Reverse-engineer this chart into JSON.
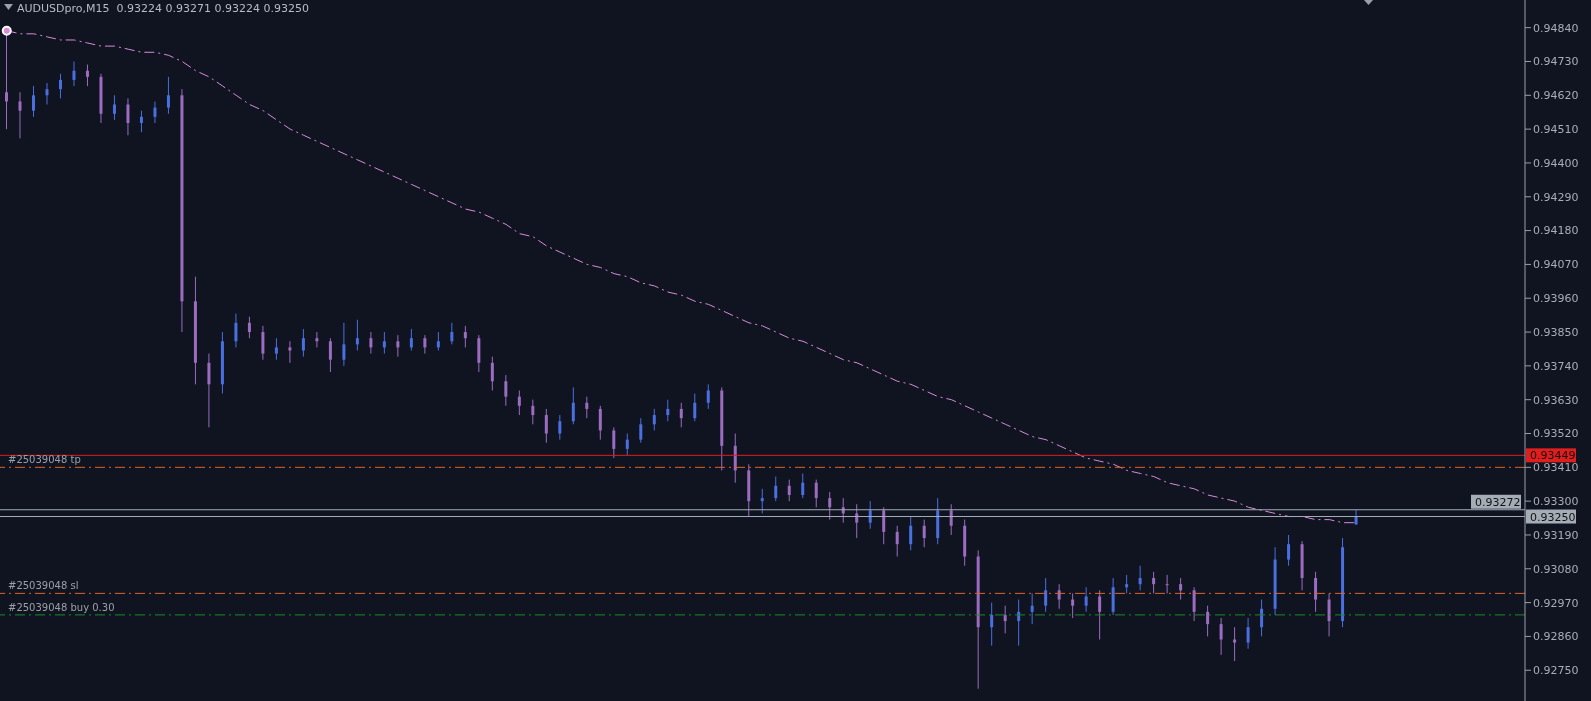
{
  "chart_data": {
    "type": "candlestick",
    "title": "AUDUSDpro,M15  0.93224 0.93271 0.93224 0.93250",
    "categories": [
      null,
      null,
      null,
      null,
      null,
      null,
      null,
      null,
      null,
      null,
      null,
      null,
      null,
      null,
      null,
      null,
      null,
      null,
      null,
      null,
      null,
      null,
      null,
      null,
      null,
      null,
      null,
      null,
      null,
      null,
      null,
      null,
      null,
      null,
      null,
      null,
      null,
      null,
      null,
      null,
      null,
      null,
      null,
      null,
      null,
      null,
      null,
      null,
      null,
      null,
      null,
      null,
      null,
      null,
      null,
      null,
      null,
      null,
      null,
      null,
      null,
      null,
      null,
      null,
      null,
      null,
      null,
      null,
      null,
      null,
      null,
      null,
      null,
      null,
      null,
      null,
      null,
      null,
      null,
      null,
      null,
      null,
      null,
      null,
      null,
      null,
      null,
      null,
      null,
      null,
      null,
      null,
      null,
      null,
      null,
      null,
      null,
      null,
      null,
      null,
      null,
      null,
      null,
      null,
      null,
      null,
      null,
      null,
      null,
      null,
      null,
      null,
      null
    ],
    "ohlc": [
      [
        0.9463,
        0.9482,
        0.9451,
        0.946
      ],
      [
        0.946,
        0.9463,
        0.9448,
        0.9457
      ],
      [
        0.9457,
        0.9465,
        0.9455,
        0.9462
      ],
      [
        0.9462,
        0.9466,
        0.9459,
        0.9464
      ],
      [
        0.9464,
        0.9469,
        0.9461,
        0.9467
      ],
      [
        0.9467,
        0.9473,
        0.9465,
        0.947
      ],
      [
        0.947,
        0.9472,
        0.9465,
        0.9468
      ],
      [
        0.9468,
        0.9469,
        0.9453,
        0.9456
      ],
      [
        0.9456,
        0.9462,
        0.9454,
        0.9459
      ],
      [
        0.9459,
        0.9461,
        0.9449,
        0.9453
      ],
      [
        0.9453,
        0.9457,
        0.945,
        0.9455
      ],
      [
        0.9455,
        0.946,
        0.9453,
        0.9458
      ],
      [
        0.9458,
        0.9468,
        0.9456,
        0.9462
      ],
      [
        0.9462,
        0.9464,
        0.9385,
        0.9395
      ],
      [
        0.9395,
        0.9403,
        0.9368,
        0.9375
      ],
      [
        0.9375,
        0.9378,
        0.9354,
        0.9368
      ],
      [
        0.9368,
        0.9385,
        0.9365,
        0.9382
      ],
      [
        0.9382,
        0.9391,
        0.938,
        0.9388
      ],
      [
        0.9388,
        0.939,
        0.9383,
        0.9385
      ],
      [
        0.9385,
        0.9387,
        0.9376,
        0.9378
      ],
      [
        0.9378,
        0.9383,
        0.9376,
        0.938
      ],
      [
        0.938,
        0.9382,
        0.9375,
        0.9379
      ],
      [
        0.9379,
        0.9386,
        0.9377,
        0.9383
      ],
      [
        0.9383,
        0.9385,
        0.938,
        0.9382
      ],
      [
        0.9382,
        0.9383,
        0.9372,
        0.9376
      ],
      [
        0.9376,
        0.9388,
        0.9374,
        0.9381
      ],
      [
        0.9381,
        0.9389,
        0.9379,
        0.9383
      ],
      [
        0.9383,
        0.9385,
        0.9378,
        0.938
      ],
      [
        0.938,
        0.9385,
        0.9378,
        0.9382
      ],
      [
        0.9382,
        0.9384,
        0.9377,
        0.938
      ],
      [
        0.938,
        0.9386,
        0.9379,
        0.9383
      ],
      [
        0.9383,
        0.9384,
        0.9378,
        0.938
      ],
      [
        0.938,
        0.9385,
        0.9379,
        0.9382
      ],
      [
        0.9382,
        0.9388,
        0.9381,
        0.9385
      ],
      [
        0.9385,
        0.9387,
        0.938,
        0.9383
      ],
      [
        0.9383,
        0.9384,
        0.9372,
        0.9375
      ],
      [
        0.9375,
        0.9377,
        0.9366,
        0.9369
      ],
      [
        0.9369,
        0.9371,
        0.9361,
        0.9364
      ],
      [
        0.9364,
        0.9366,
        0.9358,
        0.9361
      ],
      [
        0.9361,
        0.9363,
        0.9355,
        0.9358
      ],
      [
        0.9358,
        0.936,
        0.9349,
        0.9352
      ],
      [
        0.9352,
        0.9358,
        0.935,
        0.9356
      ],
      [
        0.9356,
        0.9367,
        0.9355,
        0.9362
      ],
      [
        0.9362,
        0.9364,
        0.9357,
        0.936
      ],
      [
        0.936,
        0.9361,
        0.935,
        0.9353
      ],
      [
        0.9353,
        0.9354,
        0.9344,
        0.9347
      ],
      [
        0.9347,
        0.9352,
        0.9345,
        0.935
      ],
      [
        0.935,
        0.9357,
        0.9349,
        0.9355
      ],
      [
        0.9355,
        0.936,
        0.9353,
        0.9358
      ],
      [
        0.9358,
        0.9363,
        0.9356,
        0.936
      ],
      [
        0.936,
        0.9362,
        0.9354,
        0.9357
      ],
      [
        0.9357,
        0.9365,
        0.9356,
        0.9362
      ],
      [
        0.9362,
        0.9368,
        0.936,
        0.9366
      ],
      [
        0.9366,
        0.9367,
        0.934,
        0.9348
      ],
      [
        0.9348,
        0.9352,
        0.9336,
        0.934
      ],
      [
        0.934,
        0.9342,
        0.9325,
        0.933
      ],
      [
        0.933,
        0.9334,
        0.9326,
        0.9331
      ],
      [
        0.9331,
        0.9338,
        0.933,
        0.9335
      ],
      [
        0.9335,
        0.9337,
        0.933,
        0.9332
      ],
      [
        0.9332,
        0.9339,
        0.9331,
        0.9336
      ],
      [
        0.9336,
        0.9337,
        0.9328,
        0.9331
      ],
      [
        0.9331,
        0.9333,
        0.9324,
        0.9328
      ],
      [
        0.9328,
        0.9331,
        0.9323,
        0.9326
      ],
      [
        0.9326,
        0.9329,
        0.9318,
        0.9323
      ],
      [
        0.9323,
        0.933,
        0.9321,
        0.9327
      ],
      [
        0.9327,
        0.9328,
        0.9316,
        0.932
      ],
      [
        0.932,
        0.9322,
        0.9312,
        0.9316
      ],
      [
        0.9316,
        0.9325,
        0.9314,
        0.9322
      ],
      [
        0.9322,
        0.9324,
        0.9315,
        0.9318
      ],
      [
        0.9318,
        0.9331,
        0.9316,
        0.9327
      ],
      [
        0.9327,
        0.9329,
        0.9319,
        0.9322
      ],
      [
        0.9322,
        0.9324,
        0.9309,
        0.9312
      ],
      [
        0.9312,
        0.9314,
        0.9269,
        0.9289
      ],
      [
        0.9289,
        0.9297,
        0.9283,
        0.9293
      ],
      [
        0.9293,
        0.9296,
        0.9287,
        0.9291
      ],
      [
        0.9291,
        0.9298,
        0.9283,
        0.9294
      ],
      [
        0.9294,
        0.93,
        0.929,
        0.9296
      ],
      [
        0.9296,
        0.9305,
        0.9294,
        0.9301
      ],
      [
        0.9301,
        0.9303,
        0.9295,
        0.9298
      ],
      [
        0.9298,
        0.93,
        0.9292,
        0.9296
      ],
      [
        0.9296,
        0.9302,
        0.9294,
        0.9299
      ],
      [
        0.9299,
        0.9301,
        0.9285,
        0.9294
      ],
      [
        0.9294,
        0.9305,
        0.9293,
        0.9302
      ],
      [
        0.9302,
        0.9306,
        0.93,
        0.9303
      ],
      [
        0.9303,
        0.9309,
        0.9301,
        0.9305
      ],
      [
        0.9305,
        0.9307,
        0.93,
        0.9303
      ],
      [
        0.9303,
        0.9306,
        0.93,
        0.9303
      ],
      [
        0.9303,
        0.9305,
        0.9298,
        0.9301
      ],
      [
        0.9301,
        0.9302,
        0.9291,
        0.9294
      ],
      [
        0.9294,
        0.9296,
        0.9286,
        0.929
      ],
      [
        0.929,
        0.9292,
        0.928,
        0.9285
      ],
      [
        0.9285,
        0.9289,
        0.9278,
        0.9284
      ],
      [
        0.9284,
        0.9292,
        0.9282,
        0.9289
      ],
      [
        0.9289,
        0.9298,
        0.9286,
        0.9295
      ],
      [
        0.9295,
        0.9315,
        0.9293,
        0.9311
      ],
      [
        0.9311,
        0.9319,
        0.9309,
        0.9316
      ],
      [
        0.9316,
        0.9317,
        0.9301,
        0.9305
      ],
      [
        0.9305,
        0.9307,
        0.9294,
        0.9298
      ],
      [
        0.9298,
        0.93,
        0.9286,
        0.9291
      ],
      [
        0.9291,
        0.9318,
        0.9289,
        0.9315
      ],
      [
        0.93224,
        0.93271,
        0.93224,
        0.9325
      ],
      null,
      null,
      null,
      null,
      null,
      null,
      null,
      null,
      null,
      null,
      null,
      null
    ],
    "colors": [
      "#9b6cc0",
      "#9b6cc0",
      "#4a6fe0",
      "#4a6fe0",
      "#4a6fe0",
      "#4a6fe0",
      "#9b6cc0",
      "#9b6cc0",
      "#4a6fe0",
      "#9b6cc0",
      "#4a6fe0",
      "#4a6fe0",
      "#4a6fe0",
      "#9b6cc0",
      "#9b6cc0",
      "#9b6cc0",
      "#4a6fe0",
      "#4a6fe0",
      "#9b6cc0",
      "#9b6cc0",
      "#4a6fe0",
      "#9b6cc0",
      "#4a6fe0",
      "#9b6cc0",
      "#9b6cc0",
      "#4a6fe0",
      "#4a6fe0",
      "#9b6cc0",
      "#4a6fe0",
      "#9b6cc0",
      "#4a6fe0",
      "#9b6cc0",
      "#4a6fe0",
      "#4a6fe0",
      "#9b6cc0",
      "#9b6cc0",
      "#9b6cc0",
      "#9b6cc0",
      "#9b6cc0",
      "#9b6cc0",
      "#9b6cc0",
      "#4a6fe0",
      "#4a6fe0",
      "#9b6cc0",
      "#9b6cc0",
      "#9b6cc0",
      "#4a6fe0",
      "#4a6fe0",
      "#4a6fe0",
      "#4a6fe0",
      "#9b6cc0",
      "#4a6fe0",
      "#4a6fe0",
      "#9b6cc0",
      "#9b6cc0",
      "#9b6cc0",
      "#4a6fe0",
      "#4a6fe0",
      "#9b6cc0",
      "#4a6fe0",
      "#9b6cc0",
      "#9b6cc0",
      "#9b6cc0",
      "#9b6cc0",
      "#4a6fe0",
      "#9b6cc0",
      "#9b6cc0",
      "#4a6fe0",
      "#9b6cc0",
      "#4a6fe0",
      "#9b6cc0",
      "#9b6cc0",
      "#9b6cc0",
      "#4a6fe0",
      "#9b6cc0",
      "#4a6fe0",
      "#4a6fe0",
      "#4a6fe0",
      "#9b6cc0",
      "#9b6cc0",
      "#4a6fe0",
      "#9b6cc0",
      "#4a6fe0",
      "#4a6fe0",
      "#4a6fe0",
      "#9b6cc0",
      "#9b6cc0",
      "#9b6cc0",
      "#9b6cc0",
      "#9b6cc0",
      "#9b6cc0",
      "#9b6cc0",
      "#4a6fe0",
      "#4a6fe0",
      "#4a6fe0",
      "#4a6fe0",
      "#9b6cc0",
      "#9b6cc0",
      "#9b6cc0",
      "#4a6fe0",
      "#4a6fe0",
      null,
      null,
      null,
      null,
      null,
      null,
      null,
      null,
      null,
      null,
      null,
      null
    ],
    "series": [
      {
        "type": "line",
        "color": "#d98ad9",
        "line_style": "dashed",
        "values": [
          0.9483,
          0.9482,
          0.9482,
          0.9481,
          0.948,
          0.948,
          0.9479,
          0.9478,
          0.9478,
          0.9477,
          0.9476,
          0.9476,
          0.9475,
          0.9473,
          0.947,
          0.9468,
          0.9465,
          0.9462,
          0.9459,
          0.9457,
          0.9454,
          0.9451,
          0.9449,
          0.9447,
          0.9445,
          0.9443,
          0.9441,
          0.9439,
          0.9437,
          0.9435,
          0.9433,
          0.9431,
          0.9429,
          0.9427,
          0.9425,
          0.9424,
          0.9422,
          0.942,
          0.9417,
          0.9416,
          0.9413,
          0.9411,
          0.9409,
          0.9407,
          0.9406,
          0.9404,
          0.9403,
          0.9401,
          0.94,
          0.9398,
          0.9397,
          0.9395,
          0.9394,
          0.9392,
          0.939,
          0.9388,
          0.9387,
          0.9385,
          0.9383,
          0.9382,
          0.938,
          0.9378,
          0.9376,
          0.9375,
          0.9373,
          0.9371,
          0.9369,
          0.9368,
          0.9366,
          0.9364,
          0.9363,
          0.9361,
          0.9359,
          0.9357,
          0.9355,
          0.9353,
          0.9351,
          0.935,
          0.9348,
          0.9346,
          0.9344,
          0.9343,
          0.9342,
          0.934,
          0.9339,
          0.9338,
          0.9336,
          0.9335,
          0.9334,
          0.9332,
          0.9331,
          0.933,
          0.9328,
          0.9327,
          0.9326,
          0.9325,
          0.9325,
          0.9324,
          0.9324,
          0.9323,
          0.9323,
          null,
          null,
          null,
          null,
          null,
          null,
          null,
          null,
          null,
          null,
          null,
          null
        ]
      }
    ],
    "ylim": [
      0.9265,
      0.9493
    ],
    "yticks": [
      {
        "value": 0.9275,
        "label": "0.92750"
      },
      {
        "value": 0.9286,
        "label": "0.92860"
      },
      {
        "value": 0.9297,
        "label": "0.92970"
      },
      {
        "value": 0.9308,
        "label": "0.93080"
      },
      {
        "value": 0.9319,
        "label": "0.93190"
      },
      {
        "value": 0.933,
        "label": "0.93300"
      },
      {
        "value": 0.9341,
        "label": "0.93410"
      },
      {
        "value": 0.9352,
        "label": "0.93520"
      },
      {
        "value": 0.9363,
        "label": "0.93630"
      },
      {
        "value": 0.9374,
        "label": "0.93740"
      },
      {
        "value": 0.9385,
        "label": "0.93850"
      },
      {
        "value": 0.9396,
        "label": "0.93960"
      },
      {
        "value": 0.9407,
        "label": "0.94070"
      },
      {
        "value": 0.9418,
        "label": "0.94180"
      },
      {
        "value": 0.9429,
        "label": "0.94290"
      },
      {
        "value": 0.944,
        "label": "0.94400"
      },
      {
        "value": 0.9451,
        "label": "0.94510"
      },
      {
        "value": 0.9462,
        "label": "0.94620"
      },
      {
        "value": 0.9473,
        "label": "0.94730"
      },
      {
        "value": 0.9484,
        "label": "0.94840"
      }
    ],
    "ref_lines": [
      {
        "axis": "y",
        "value": 0.93449,
        "label": "0.93449",
        "color": "#e01e1e",
        "line_style": "solid"
      },
      {
        "axis": "y",
        "value": 0.9341,
        "label": "#25039048 tp",
        "color": "#e0622a",
        "line_style": "dashed"
      },
      {
        "axis": "y",
        "value": 0.93272,
        "label": "0.93272",
        "color": "#a4acb6",
        "line_style": "solid"
      },
      {
        "axis": "y",
        "value": 0.9325,
        "label": "0.93250",
        "color": "#a4acb6",
        "line_style": "solid"
      },
      {
        "axis": "y",
        "value": 0.93,
        "label": "#25039048 sl",
        "color": "#e0622a",
        "line_style": "dashed"
      },
      {
        "axis": "y",
        "value": 0.9293,
        "label": "#25039048 buy 0.30",
        "color": "#1f8a2a",
        "line_style": "dashed"
      }
    ],
    "grid": false,
    "legend": false
  }
}
